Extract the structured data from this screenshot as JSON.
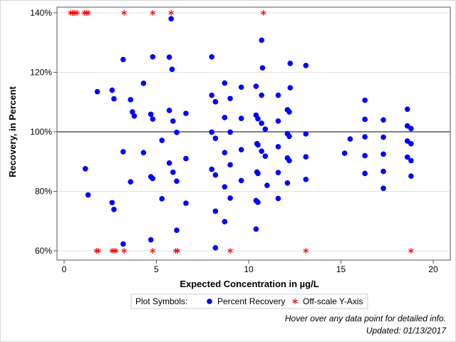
{
  "chart_data": {
    "type": "scatter",
    "xlabel": "Expected Concentration in µg/L",
    "ylabel": "Recovery, in Percent",
    "xlim": [
      0,
      20
    ],
    "ylim": [
      60,
      140
    ],
    "x_ticks": [
      0,
      5,
      10,
      15,
      20
    ],
    "y_ticks": [
      60,
      80,
      100,
      120,
      140
    ],
    "x_tick_labels": [
      "0",
      "5",
      "10",
      "15",
      "20"
    ],
    "y_tick_labels": [
      "60%",
      "80%",
      "100%",
      "120%",
      "140%"
    ],
    "reference_line": 100,
    "grid": "horizontal",
    "colors": {
      "points": "#0000ff",
      "offscale": "#ff0000",
      "grid": "#e0e0e0",
      "reference": "#000000"
    },
    "legend": {
      "title": "Plot Symbols:",
      "position": "bottom",
      "items": [
        {
          "label": "Percent Recovery",
          "symbol": "dot-icon",
          "color": "#0000ff"
        },
        {
          "label": "Off-scale Y-Axis",
          "symbol": "asterisk-icon",
          "color": "#ff0000"
        }
      ]
    },
    "series": [
      {
        "name": "Percent Recovery",
        "marker": "circle",
        "points": [
          [
            1.15,
            87.6
          ],
          [
            1.3,
            78.8
          ],
          [
            1.8,
            113.5
          ],
          [
            2.6,
            114.0
          ],
          [
            2.7,
            111.1
          ],
          [
            2.6,
            76.2
          ],
          [
            2.7,
            73.9
          ],
          [
            3.2,
            124.3
          ],
          [
            3.2,
            93.3
          ],
          [
            3.2,
            62.3
          ],
          [
            3.6,
            110.8
          ],
          [
            3.7,
            106.7
          ],
          [
            3.8,
            105.3
          ],
          [
            3.6,
            83.2
          ],
          [
            4.3,
            116.3
          ],
          [
            4.3,
            93.0
          ],
          [
            4.7,
            105.9
          ],
          [
            4.8,
            104.3
          ],
          [
            4.8,
            125.2
          ],
          [
            4.7,
            84.9
          ],
          [
            4.8,
            84.3
          ],
          [
            4.7,
            63.7
          ],
          [
            5.3,
            97.1
          ],
          [
            5.3,
            77.5
          ],
          [
            5.7,
            125.1
          ],
          [
            5.7,
            107.2
          ],
          [
            5.7,
            89.5
          ],
          [
            5.8,
            138.0
          ],
          [
            5.85,
            121.0
          ],
          [
            5.9,
            103.6
          ],
          [
            5.9,
            86.4
          ],
          [
            6.1,
            99.8
          ],
          [
            6.1,
            83.4
          ],
          [
            6.1,
            66.9
          ],
          [
            6.6,
            106.2
          ],
          [
            6.6,
            91.0
          ],
          [
            6.6,
            76.0
          ],
          [
            8.0,
            125.2
          ],
          [
            8.0,
            112.3
          ],
          [
            8.2,
            110.1
          ],
          [
            8.0,
            99.9
          ],
          [
            8.2,
            97.8
          ],
          [
            8.0,
            87.4
          ],
          [
            8.2,
            85.5
          ],
          [
            8.2,
            73.3
          ],
          [
            8.2,
            61.0
          ],
          [
            8.7,
            116.4
          ],
          [
            8.7,
            104.8
          ],
          [
            8.7,
            93.0
          ],
          [
            8.7,
            81.5
          ],
          [
            8.7,
            69.8
          ],
          [
            9.0,
            111.2
          ],
          [
            9.0,
            99.9
          ],
          [
            9.0,
            88.9
          ],
          [
            9.0,
            77.7
          ],
          [
            9.6,
            115.0
          ],
          [
            9.6,
            104.5
          ],
          [
            9.6,
            94.0
          ],
          [
            9.6,
            83.6
          ],
          [
            10.4,
            115.3
          ],
          [
            10.4,
            105.6
          ],
          [
            10.45,
            96.0
          ],
          [
            10.5,
            95.6
          ],
          [
            10.45,
            86.5
          ],
          [
            10.5,
            86.0
          ],
          [
            10.4,
            76.9
          ],
          [
            10.5,
            76.3
          ],
          [
            10.4,
            67.3
          ],
          [
            10.5,
            104.4
          ],
          [
            10.7,
            130.8
          ],
          [
            10.75,
            121.5
          ],
          [
            10.7,
            112.3
          ],
          [
            10.7,
            102.9
          ],
          [
            10.7,
            93.5
          ],
          [
            10.9,
            100.9
          ],
          [
            10.9,
            91.8
          ],
          [
            11.0,
            82.0
          ],
          [
            11.6,
            112.3
          ],
          [
            11.6,
            103.6
          ],
          [
            11.6,
            95.0
          ],
          [
            11.6,
            86.3
          ],
          [
            11.6,
            77.6
          ],
          [
            12.1,
            107.4
          ],
          [
            12.2,
            106.7
          ],
          [
            12.1,
            99.4
          ],
          [
            12.2,
            98.5
          ],
          [
            12.1,
            91.2
          ],
          [
            12.2,
            90.3
          ],
          [
            12.1,
            82.8
          ],
          [
            12.25,
            123.0
          ],
          [
            12.25,
            114.8
          ],
          [
            13.1,
            122.3
          ],
          [
            13.1,
            99.3
          ],
          [
            13.1,
            91.6
          ],
          [
            13.1,
            84.0
          ],
          [
            15.2,
            92.8
          ],
          [
            15.5,
            97.6
          ],
          [
            16.3,
            110.6
          ],
          [
            16.3,
            104.2
          ],
          [
            16.3,
            98.3
          ],
          [
            16.3,
            92.0
          ],
          [
            16.3,
            86.0
          ],
          [
            17.3,
            104.0
          ],
          [
            17.3,
            98.2
          ],
          [
            17.3,
            92.5
          ],
          [
            17.3,
            86.7
          ],
          [
            17.3,
            81.0
          ],
          [
            18.6,
            107.6
          ],
          [
            18.6,
            102.0
          ],
          [
            18.6,
            96.9
          ],
          [
            18.6,
            91.5
          ],
          [
            18.8,
            101.1
          ],
          [
            18.8,
            96.0
          ],
          [
            18.8,
            90.3
          ],
          [
            18.8,
            85.1
          ]
        ]
      },
      {
        "name": "Off-scale Y-Axis",
        "marker": "asterisk",
        "points": [
          [
            0.35,
            140
          ],
          [
            0.45,
            140
          ],
          [
            0.55,
            140
          ],
          [
            0.7,
            140
          ],
          [
            1.1,
            140
          ],
          [
            1.2,
            140
          ],
          [
            1.3,
            140
          ],
          [
            3.25,
            140
          ],
          [
            4.8,
            140
          ],
          [
            5.8,
            140
          ],
          [
            10.8,
            140
          ],
          [
            1.75,
            60
          ],
          [
            1.85,
            60
          ],
          [
            2.6,
            60
          ],
          [
            2.7,
            60
          ],
          [
            2.8,
            60
          ],
          [
            3.25,
            60
          ],
          [
            4.8,
            60
          ],
          [
            6.05,
            60
          ],
          [
            6.15,
            60
          ],
          [
            9.0,
            60
          ],
          [
            13.1,
            60
          ],
          [
            18.8,
            60
          ]
        ]
      }
    ]
  },
  "footnotes": {
    "hover_hint": "Hover over any data point for detailed info.",
    "updated": "Updated: 01/13/2017"
  }
}
